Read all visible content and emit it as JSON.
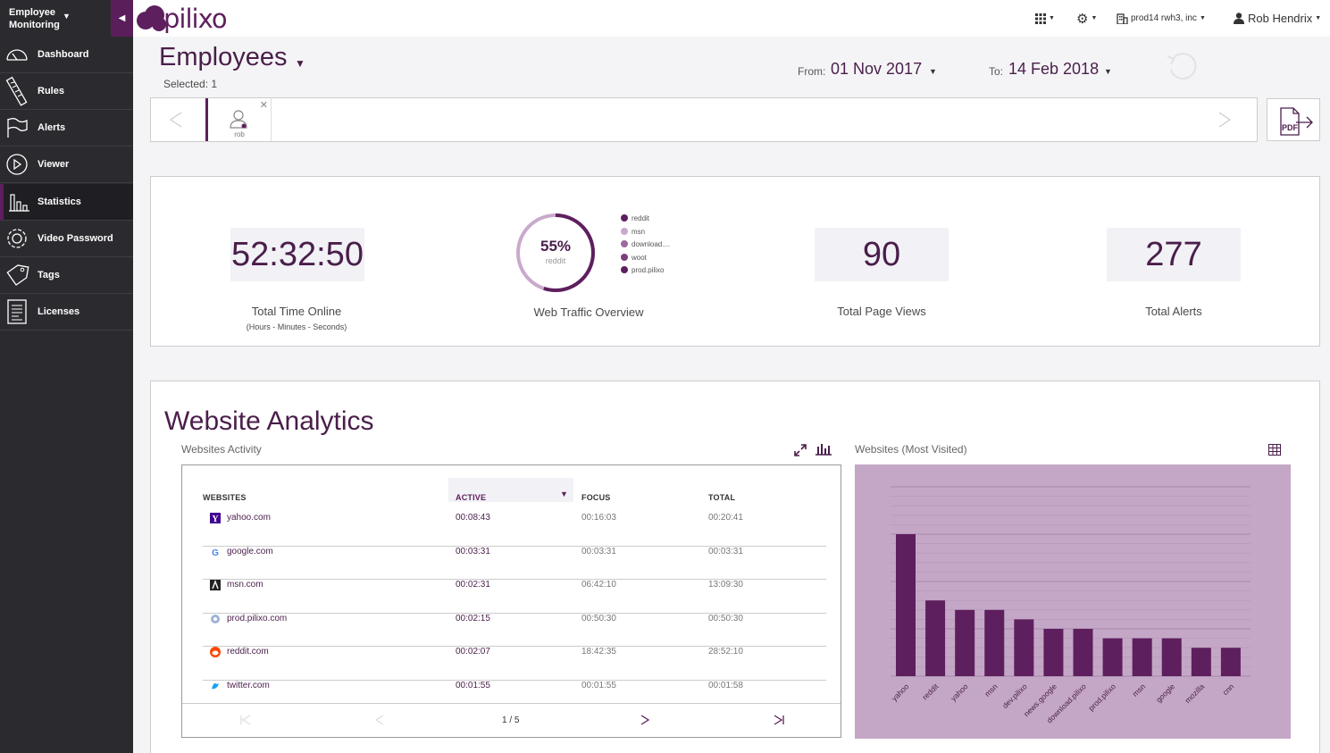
{
  "sidebar": {
    "brand": "Employee Monitoring",
    "items": [
      {
        "label": "Dashboard",
        "icon": "speedometer-icon"
      },
      {
        "label": "Rules",
        "icon": "ruler-icon"
      },
      {
        "label": "Alerts",
        "icon": "flag-icon"
      },
      {
        "label": "Viewer",
        "icon": "play-icon"
      },
      {
        "label": "Statistics",
        "icon": "bar-chart-icon",
        "active": true
      },
      {
        "label": "Video Password",
        "icon": "gear-icon"
      },
      {
        "label": "Tags",
        "icon": "tag-icon"
      },
      {
        "label": "Licenses",
        "icon": "license-icon"
      }
    ]
  },
  "topbar": {
    "logo_text": "pilixo",
    "company": "prod14 rwh3, inc",
    "user": "Rob Hendrix"
  },
  "header": {
    "title": "Employees",
    "selected": "Selected: 1",
    "from_label": "From:",
    "from_value": "01 Nov 2017",
    "to_label": "To:",
    "to_value": "14 Feb 2018"
  },
  "user_bar": {
    "user_name": "rob",
    "pdf_label": "PDF"
  },
  "summary": {
    "time_online": "52:32:50",
    "time_online_label": "Total Time Online",
    "time_online_sub": "(Hours - Minutes - Seconds)",
    "donut_percent": "55%",
    "donut_site": "reddit",
    "donut_fraction": 0.55,
    "web_traffic_label": "Web Traffic Overview",
    "legend": [
      {
        "label": "reddit",
        "color": "#5e1f5e"
      },
      {
        "label": "msn",
        "color": "#c9a9cc"
      },
      {
        "label": "download....",
        "color": "#9c6a9e"
      },
      {
        "label": "woot",
        "color": "#7b3f7d"
      },
      {
        "label": "prod.pilixo",
        "color": "#5e1f5e"
      }
    ],
    "page_views": "90",
    "page_views_label": "Total Page Views",
    "alerts": "277",
    "alerts_label": "Total Alerts"
  },
  "analytics": {
    "title": "Website Analytics",
    "activity_title": "Websites Activity",
    "most_visited_title": "Websites (Most Visited)",
    "columns": [
      "WEBSITES",
      "ACTIVE",
      "FOCUS",
      "TOTAL"
    ],
    "rows": [
      {
        "site": "yahoo.com",
        "active": "00:08:43",
        "focus": "00:16:03",
        "total": "00:20:41",
        "icon": "yahoo-icon"
      },
      {
        "site": "google.com",
        "active": "00:03:31",
        "focus": "00:03:31",
        "total": "00:03:31",
        "icon": "google-icon"
      },
      {
        "site": "msn.com",
        "active": "00:02:31",
        "focus": "06:42:10",
        "total": "13:09:30",
        "icon": "msn-icon"
      },
      {
        "site": "prod.pilixo.com",
        "active": "00:02:15",
        "focus": "00:50:30",
        "total": "00:50:30",
        "icon": "globe-icon"
      },
      {
        "site": "reddit.com",
        "active": "00:02:07",
        "focus": "18:42:35",
        "total": "28:52:10",
        "icon": "reddit-icon"
      },
      {
        "site": "twitter.com",
        "active": "00:01:55",
        "focus": "00:01:55",
        "total": "00:01:58",
        "icon": "twitter-icon"
      }
    ],
    "page_indicator": "1 / 5"
  },
  "chart_data": {
    "type": "bar",
    "categories": [
      "yahoo",
      "reddit",
      "yahoo",
      "msn",
      "dev.pilixo",
      "news.google",
      "download.pilixo",
      "prod.pilixo",
      "msn",
      "google",
      "mozilla",
      "cnn"
    ],
    "values": [
      15,
      8,
      7,
      7,
      6,
      5,
      5,
      4,
      4,
      4,
      3,
      3
    ],
    "ylim": [
      0,
      20
    ],
    "bar_color": "#5e1f5e",
    "background": "#c4a7c6"
  }
}
